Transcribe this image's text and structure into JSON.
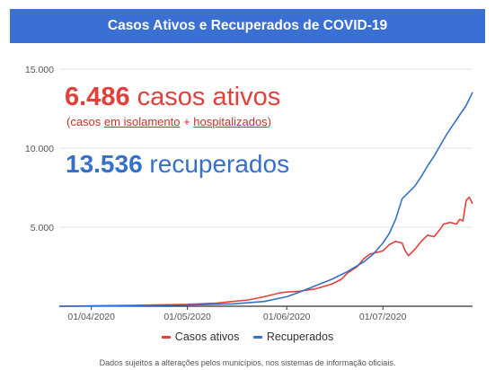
{
  "header": {
    "title": "Casos Ativos e Recuperados de COVID-19"
  },
  "callouts": {
    "active_number": "6.486",
    "active_text": "casos ativos",
    "active_sub_open": "(casos ",
    "active_sub_link1": "em isolamento",
    "active_sub_plus": " + ",
    "active_sub_link2": "hospitalizados",
    "active_sub_close": ")",
    "recovered_number": "13.536",
    "recovered_text": "recuperados"
  },
  "footnote": "Dados sujeitos a alterações pelos municípios, nos sistemas de informação oficiais.",
  "colors": {
    "banner": "#3a6fd4",
    "active": "#e2403a",
    "recovered": "#3670c8"
  },
  "chart_data": {
    "type": "line",
    "x_tick_labels": [
      "01/04/2020",
      "01/05/2020",
      "01/06/2020",
      "01/07/2020"
    ],
    "y_tick_labels": [
      "5.000",
      "10.000",
      "15.000"
    ],
    "ylim": [
      0,
      15000
    ],
    "xlim": [
      "2020-03-22",
      "2020-07-29"
    ],
    "grid": "horizontal",
    "legend_position": "bottom",
    "series": [
      {
        "name": "Casos ativos",
        "color": "#e2403a",
        "points": [
          [
            "2020-03-22",
            0
          ],
          [
            "2020-04-01",
            20
          ],
          [
            "2020-04-15",
            60
          ],
          [
            "2020-05-01",
            120
          ],
          [
            "2020-05-10",
            200
          ],
          [
            "2020-05-20",
            400
          ],
          [
            "2020-05-25",
            600
          ],
          [
            "2020-05-30",
            850
          ],
          [
            "2020-06-01",
            900
          ],
          [
            "2020-06-05",
            950
          ],
          [
            "2020-06-10",
            1100
          ],
          [
            "2020-06-15",
            1400
          ],
          [
            "2020-06-18",
            1700
          ],
          [
            "2020-06-20",
            2100
          ],
          [
            "2020-06-23",
            2500
          ],
          [
            "2020-06-25",
            3000
          ],
          [
            "2020-06-27",
            3300
          ],
          [
            "2020-06-29",
            3400
          ],
          [
            "2020-07-01",
            3500
          ],
          [
            "2020-07-03",
            3900
          ],
          [
            "2020-07-05",
            4100
          ],
          [
            "2020-07-07",
            4000
          ],
          [
            "2020-07-08",
            3500
          ],
          [
            "2020-07-09",
            3200
          ],
          [
            "2020-07-11",
            3600
          ],
          [
            "2020-07-13",
            4100
          ],
          [
            "2020-07-15",
            4500
          ],
          [
            "2020-07-17",
            4400
          ],
          [
            "2020-07-19",
            4900
          ],
          [
            "2020-07-20",
            5200
          ],
          [
            "2020-07-22",
            5300
          ],
          [
            "2020-07-24",
            5200
          ],
          [
            "2020-07-25",
            5500
          ],
          [
            "2020-07-26",
            5400
          ],
          [
            "2020-07-27",
            6700
          ],
          [
            "2020-07-28",
            6900
          ],
          [
            "2020-07-29",
            6486
          ]
        ]
      },
      {
        "name": "Recuperados",
        "color": "#3670c8",
        "points": [
          [
            "2020-03-22",
            0
          ],
          [
            "2020-04-01",
            10
          ],
          [
            "2020-04-15",
            40
          ],
          [
            "2020-05-01",
            80
          ],
          [
            "2020-05-15",
            150
          ],
          [
            "2020-05-25",
            300
          ],
          [
            "2020-06-01",
            600
          ],
          [
            "2020-06-05",
            900
          ],
          [
            "2020-06-10",
            1300
          ],
          [
            "2020-06-15",
            1700
          ],
          [
            "2020-06-20",
            2200
          ],
          [
            "2020-06-25",
            2800
          ],
          [
            "2020-06-28",
            3300
          ],
          [
            "2020-07-01",
            4000
          ],
          [
            "2020-07-03",
            4600
          ],
          [
            "2020-07-05",
            5500
          ],
          [
            "2020-07-07",
            6800
          ],
          [
            "2020-07-09",
            7200
          ],
          [
            "2020-07-11",
            7600
          ],
          [
            "2020-07-13",
            8200
          ],
          [
            "2020-07-15",
            8900
          ],
          [
            "2020-07-17",
            9500
          ],
          [
            "2020-07-19",
            10200
          ],
          [
            "2020-07-21",
            10900
          ],
          [
            "2020-07-23",
            11500
          ],
          [
            "2020-07-25",
            12100
          ],
          [
            "2020-07-27",
            12700
          ],
          [
            "2020-07-29",
            13536
          ]
        ]
      }
    ]
  }
}
